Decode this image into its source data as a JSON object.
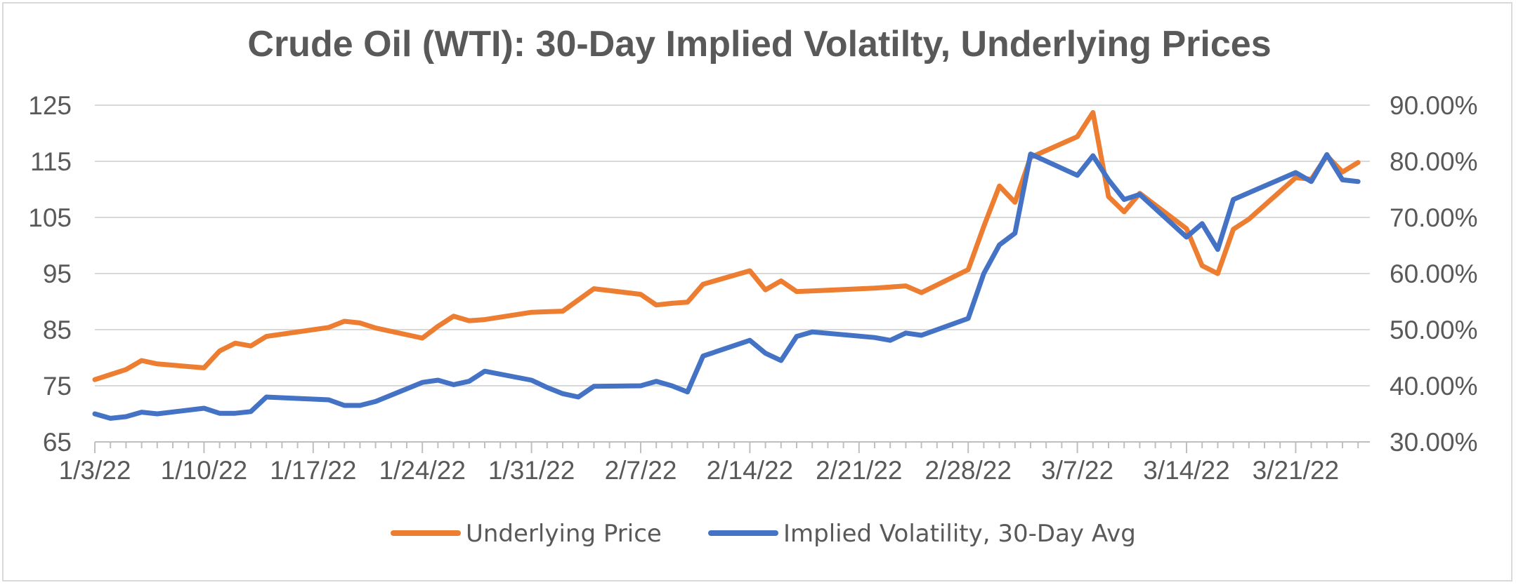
{
  "chart_data": {
    "type": "line",
    "title": "Crude Oil (WTI): 30-Day Implied Volatilty, Underlying Prices",
    "xlabel": "",
    "ylabel": "",
    "y2label": "",
    "ylim": [
      65,
      125
    ],
    "y_ticks": [
      "125",
      "115",
      "105",
      "95",
      "85",
      "75",
      "65"
    ],
    "y2lim": [
      0.3,
      0.9
    ],
    "y2_ticks": [
      "90.00%",
      "80.00%",
      "70.00%",
      "60.00%",
      "50.00%",
      "40.00%",
      "30.00%"
    ],
    "x_ticks": [
      "1/3/22",
      "1/10/22",
      "1/17/22",
      "1/24/22",
      "1/31/22",
      "2/7/22",
      "2/14/22",
      "2/21/22",
      "2/28/22",
      "3/7/22",
      "3/14/22",
      "3/21/22"
    ],
    "grid": true,
    "legend_position": "bottom",
    "series": [
      {
        "name": "Underlying Price",
        "axis": "left",
        "color": "#ED7D31",
        "points": [
          [
            "2022-01-03",
            76.1
          ],
          [
            "2022-01-04",
            77.0
          ],
          [
            "2022-01-05",
            77.9
          ],
          [
            "2022-01-06",
            79.5
          ],
          [
            "2022-01-07",
            78.9
          ],
          [
            "2022-01-10",
            78.2
          ],
          [
            "2022-01-11",
            81.2
          ],
          [
            "2022-01-12",
            82.6
          ],
          [
            "2022-01-13",
            82.1
          ],
          [
            "2022-01-14",
            83.8
          ],
          [
            "2022-01-18",
            85.4
          ],
          [
            "2022-01-19",
            86.5
          ],
          [
            "2022-01-20",
            86.2
          ],
          [
            "2022-01-21",
            85.3
          ],
          [
            "2022-01-24",
            83.5
          ],
          [
            "2022-01-25",
            85.6
          ],
          [
            "2022-01-26",
            87.4
          ],
          [
            "2022-01-27",
            86.6
          ],
          [
            "2022-01-28",
            86.8
          ],
          [
            "2022-01-31",
            88.1
          ],
          [
            "2022-02-01",
            88.2
          ],
          [
            "2022-02-02",
            88.3
          ],
          [
            "2022-02-03",
            90.3
          ],
          [
            "2022-02-04",
            92.3
          ],
          [
            "2022-02-07",
            91.3
          ],
          [
            "2022-02-08",
            89.4
          ],
          [
            "2022-02-09",
            89.7
          ],
          [
            "2022-02-10",
            89.9
          ],
          [
            "2022-02-11",
            93.1
          ],
          [
            "2022-02-14",
            95.5
          ],
          [
            "2022-02-15",
            92.1
          ],
          [
            "2022-02-16",
            93.7
          ],
          [
            "2022-02-17",
            91.8
          ],
          [
            "2022-02-18",
            91.9
          ],
          [
            "2022-02-22",
            92.4
          ],
          [
            "2022-02-23",
            92.6
          ],
          [
            "2022-02-24",
            92.8
          ],
          [
            "2022-02-25",
            91.6
          ],
          [
            "2022-02-28",
            95.7
          ],
          [
            "2022-03-01",
            103.4
          ],
          [
            "2022-03-02",
            110.6
          ],
          [
            "2022-03-03",
            107.7
          ],
          [
            "2022-03-04",
            115.7
          ],
          [
            "2022-03-07",
            119.4
          ],
          [
            "2022-03-08",
            123.7
          ],
          [
            "2022-03-09",
            108.7
          ],
          [
            "2022-03-10",
            106.0
          ],
          [
            "2022-03-11",
            109.3
          ],
          [
            "2022-03-14",
            103.0
          ],
          [
            "2022-03-15",
            96.4
          ],
          [
            "2022-03-16",
            95.0
          ],
          [
            "2022-03-17",
            102.9
          ],
          [
            "2022-03-18",
            104.7
          ],
          [
            "2022-03-21",
            112.1
          ],
          [
            "2022-03-22",
            111.8
          ],
          [
            "2022-03-23",
            116.0
          ],
          [
            "2022-03-24",
            113.1
          ],
          [
            "2022-03-25",
            114.8
          ]
        ]
      },
      {
        "name": "Implied Volatility, 30-Day Avg",
        "axis": "right",
        "color": "#4472C4",
        "points": [
          [
            "2022-01-03",
            0.35
          ],
          [
            "2022-01-04",
            0.342
          ],
          [
            "2022-01-05",
            0.345
          ],
          [
            "2022-01-06",
            0.353
          ],
          [
            "2022-01-07",
            0.35
          ],
          [
            "2022-01-10",
            0.36
          ],
          [
            "2022-01-11",
            0.351
          ],
          [
            "2022-01-12",
            0.351
          ],
          [
            "2022-01-13",
            0.354
          ],
          [
            "2022-01-14",
            0.38
          ],
          [
            "2022-01-18",
            0.375
          ],
          [
            "2022-01-19",
            0.365
          ],
          [
            "2022-01-20",
            0.365
          ],
          [
            "2022-01-21",
            0.372
          ],
          [
            "2022-01-24",
            0.406
          ],
          [
            "2022-01-25",
            0.41
          ],
          [
            "2022-01-26",
            0.402
          ],
          [
            "2022-01-27",
            0.408
          ],
          [
            "2022-01-28",
            0.426
          ],
          [
            "2022-01-31",
            0.41
          ],
          [
            "2022-02-01",
            0.397
          ],
          [
            "2022-02-02",
            0.386
          ],
          [
            "2022-02-03",
            0.38
          ],
          [
            "2022-02-04",
            0.399
          ],
          [
            "2022-02-07",
            0.4
          ],
          [
            "2022-02-08",
            0.408
          ],
          [
            "2022-02-09",
            0.4
          ],
          [
            "2022-02-10",
            0.389
          ],
          [
            "2022-02-11",
            0.453
          ],
          [
            "2022-02-14",
            0.481
          ],
          [
            "2022-02-15",
            0.458
          ],
          [
            "2022-02-16",
            0.445
          ],
          [
            "2022-02-17",
            0.488
          ],
          [
            "2022-02-18",
            0.496
          ],
          [
            "2022-02-22",
            0.486
          ],
          [
            "2022-02-23",
            0.481
          ],
          [
            "2022-02-24",
            0.494
          ],
          [
            "2022-02-25",
            0.49
          ],
          [
            "2022-02-28",
            0.52
          ],
          [
            "2022-03-01",
            0.6
          ],
          [
            "2022-03-02",
            0.651
          ],
          [
            "2022-03-03",
            0.672
          ],
          [
            "2022-03-04",
            0.813
          ],
          [
            "2022-03-07",
            0.775
          ],
          [
            "2022-03-08",
            0.81
          ],
          [
            "2022-03-09",
            0.767
          ],
          [
            "2022-03-10",
            0.732
          ],
          [
            "2022-03-11",
            0.741
          ],
          [
            "2022-03-14",
            0.665
          ],
          [
            "2022-03-15",
            0.689
          ],
          [
            "2022-03-16",
            0.643
          ],
          [
            "2022-03-17",
            0.732
          ],
          [
            "2022-03-21",
            0.78
          ],
          [
            "2022-03-22",
            0.764
          ],
          [
            "2022-03-23",
            0.812
          ],
          [
            "2022-03-24",
            0.767
          ],
          [
            "2022-03-25",
            0.764
          ]
        ]
      }
    ]
  }
}
